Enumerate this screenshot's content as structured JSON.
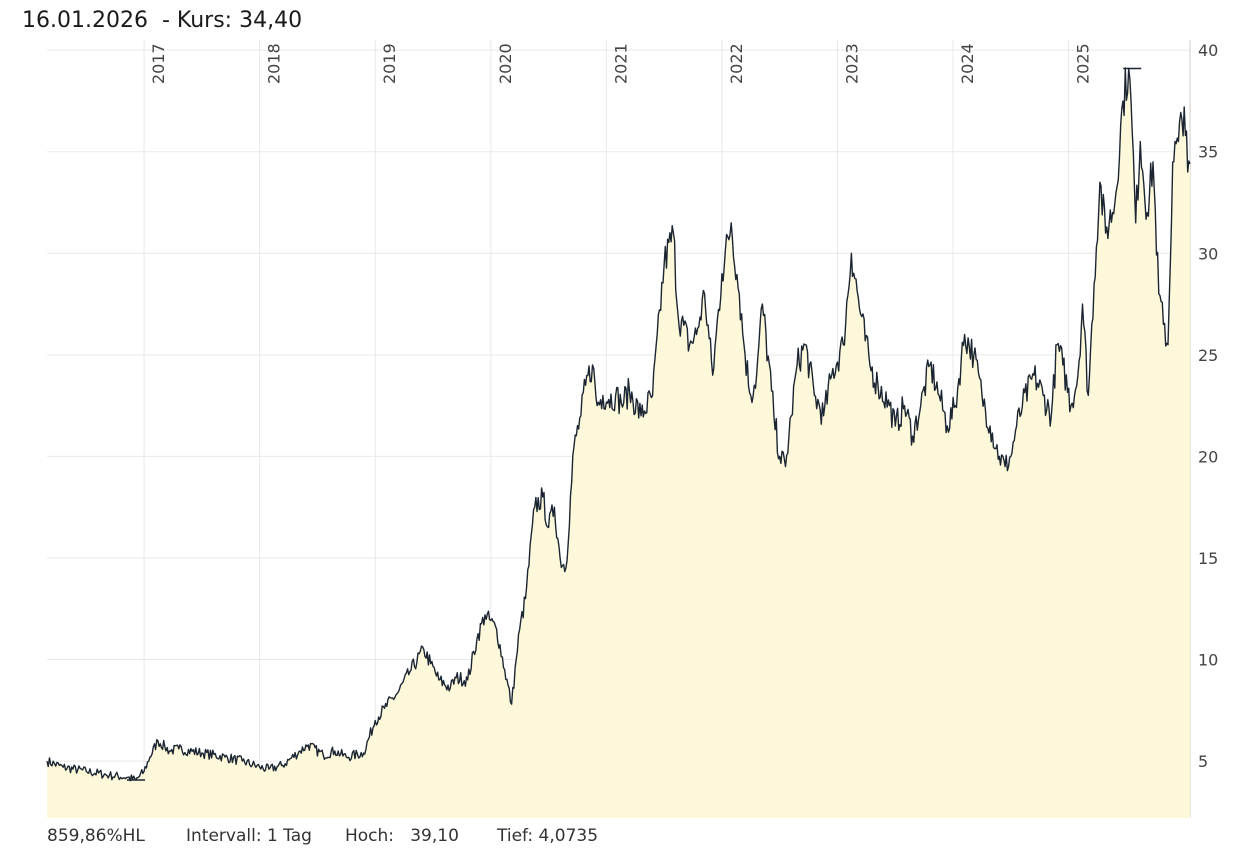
{
  "header": {
    "date": "16.01.2026",
    "price_label": "- Kurs: 34,40"
  },
  "footer": {
    "percent": "859,86%HL",
    "interval": "Intervall: 1 Tag",
    "high": "Hoch:   39,10",
    "low": "Tief: 4,0735"
  },
  "colors": {
    "fill": "#fdf8d9",
    "line": "#1b2632",
    "grid": "#e9e9e9"
  },
  "chart_data": {
    "type": "area",
    "title": "",
    "xlabel": "",
    "ylabel": "",
    "ylim": [
      2.2,
      40.5
    ],
    "xlim": [
      2016.16,
      2026.05
    ],
    "y_ticks": [
      5,
      10,
      15,
      20,
      25,
      30,
      35,
      40
    ],
    "y_tick_labels": [
      "5",
      "10",
      "15",
      "20",
      "25",
      "30",
      "35",
      "40"
    ],
    "x_ticks": [
      2017,
      2018,
      2019,
      2020,
      2021,
      2022,
      2023,
      2024,
      2025
    ],
    "x_tick_labels": [
      "2017",
      "2018",
      "2019",
      "2020",
      "2021",
      "2022",
      "2023",
      "2024",
      "2025"
    ],
    "grid": true,
    "high_marker": {
      "x": 2025.55,
      "y": 39.1
    },
    "low_marker": {
      "x": 2016.93,
      "y": 4.07
    },
    "x": [
      2016.16,
      2016.3,
      2016.5,
      2016.7,
      2016.85,
      2016.93,
      2017.0,
      2017.05,
      2017.12,
      2017.18,
      2017.22,
      2017.3,
      2017.5,
      2017.7,
      2017.85,
      2018.0,
      2018.08,
      2018.2,
      2018.35,
      2018.42,
      2018.55,
      2018.65,
      2018.75,
      2018.9,
      2019.0,
      2019.08,
      2019.2,
      2019.3,
      2019.42,
      2019.48,
      2019.55,
      2019.65,
      2019.7,
      2019.8,
      2019.88,
      2019.95,
      2020.05,
      2020.12,
      2020.18,
      2020.22,
      2020.25,
      2020.3,
      2020.38,
      2020.45,
      2020.5,
      2020.55,
      2020.6,
      2020.65,
      2020.72,
      2020.78,
      2020.82,
      2020.88,
      2020.92,
      2020.97,
      2021.02,
      2021.08,
      2021.13,
      2021.2,
      2021.3,
      2021.4,
      2021.5,
      2021.58,
      2021.62,
      2021.72,
      2021.78,
      2021.85,
      2021.92,
      2022.0,
      2022.08,
      2022.15,
      2022.2,
      2022.25,
      2022.3,
      2022.35,
      2022.45,
      2022.5,
      2022.55,
      2022.6,
      2022.65,
      2022.72,
      2022.8,
      2022.88,
      2022.95,
      2023.05,
      2023.12,
      2023.2,
      2023.28,
      2023.35,
      2023.45,
      2023.5,
      2023.58,
      2023.65,
      2023.72,
      2023.8,
      2023.88,
      2023.95,
      2024.02,
      2024.1,
      2024.18,
      2024.25,
      2024.32,
      2024.4,
      2024.45,
      2024.5,
      2024.55,
      2024.6,
      2024.7,
      2024.78,
      2024.85,
      2024.9,
      2024.95,
      2025.02,
      2025.08,
      2025.12,
      2025.17,
      2025.22,
      2025.27,
      2025.32,
      2025.4,
      2025.47,
      2025.52,
      2025.55,
      2025.58,
      2025.62,
      2025.68,
      2025.73,
      2025.78,
      2025.82,
      2025.86,
      2025.9,
      2025.95,
      2026.0,
      2026.03,
      2026.05
    ],
    "y": [
      5.0,
      4.7,
      4.5,
      4.3,
      4.2,
      4.07,
      4.5,
      5.2,
      6.0,
      5.7,
      5.5,
      5.6,
      5.4,
      5.2,
      5.0,
      4.7,
      4.6,
      4.8,
      5.5,
      5.8,
      5.3,
      5.5,
      5.2,
      5.4,
      7.0,
      7.6,
      8.4,
      9.4,
      10.5,
      9.8,
      9.0,
      8.6,
      9.1,
      9.0,
      11.0,
      12.2,
      11.5,
      9.5,
      7.8,
      10.0,
      11.5,
      13.0,
      17.5,
      18.0,
      16.5,
      17.5,
      15.0,
      14.5,
      20.5,
      22.0,
      23.5,
      24.5,
      22.5,
      23.0,
      22.8,
      23.0,
      22.6,
      23.2,
      22.0,
      23.0,
      29.5,
      31.0,
      27.0,
      25.5,
      26.0,
      28.0,
      24.0,
      29.0,
      31.5,
      28.0,
      25.0,
      23.0,
      24.0,
      27.5,
      22.0,
      20.0,
      19.5,
      22.0,
      24.5,
      25.5,
      23.0,
      22.0,
      24.0,
      25.5,
      30.0,
      27.0,
      24.5,
      23.5,
      22.5,
      21.5,
      22.5,
      21.0,
      22.5,
      24.5,
      23.0,
      21.5,
      22.5,
      26.0,
      25.0,
      23.0,
      21.5,
      20.0,
      19.5,
      20.0,
      21.5,
      22.5,
      24.0,
      23.0,
      22.0,
      25.5,
      24.5,
      22.5,
      24.0,
      27.5,
      23.0,
      28.5,
      33.5,
      31.0,
      32.5,
      37.5,
      39.1,
      36.0,
      31.5,
      35.5,
      32.0,
      34.5,
      28.0,
      26.5,
      25.5,
      34.5,
      35.5,
      37.2,
      34.0,
      34.4
    ]
  }
}
